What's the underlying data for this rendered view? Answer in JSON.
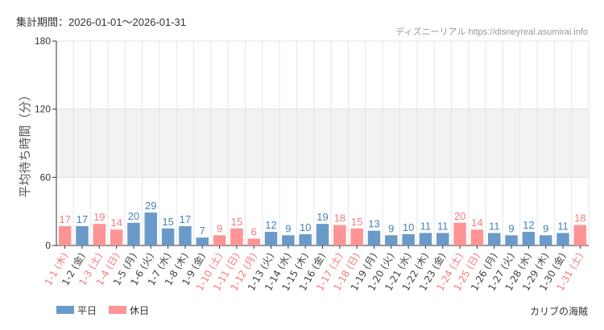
{
  "header": {
    "period": "集計期間：2026-01-01〜2026-01-31",
    "credit": "ディズニーリアル https://disneyreal.asumirai.info"
  },
  "footer": {
    "area": "カリブの海賊"
  },
  "chart_data": {
    "type": "bar",
    "ylabel": "平均待ち時間（分）",
    "ylim": [
      0,
      180
    ],
    "yticks": [
      0,
      60,
      120,
      180
    ],
    "grid": true,
    "shaded_band": [
      60,
      120
    ],
    "legend_position": "bottom-left",
    "colors": {
      "weekday": "#6a9ac8",
      "holiday": "#ff9396",
      "weekday_label": "#4a7fb8",
      "holiday_label": "#f47c7f"
    },
    "series": [
      {
        "name": "平日",
        "key": "weekday"
      },
      {
        "name": "休日",
        "key": "holiday"
      }
    ],
    "categories": [
      "1-1 (木)",
      "1-2 (金)",
      "1-3 (土)",
      "1-4 (日)",
      "1-5 (月)",
      "1-6 (火)",
      "1-7 (水)",
      "1-8 (木)",
      "1-9 (金)",
      "1-10 (土)",
      "1-11 (日)",
      "1-12 (月)",
      "1-13 (火)",
      "1-14 (水)",
      "1-15 (木)",
      "1-16 (金)",
      "1-17 (土)",
      "1-18 (日)",
      "1-19 (月)",
      "1-20 (火)",
      "1-21 (水)",
      "1-22 (木)",
      "1-23 (金)",
      "1-24 (土)",
      "1-25 (日)",
      "1-26 (月)",
      "1-27 (火)",
      "1-28 (水)",
      "1-29 (木)",
      "1-30 (金)",
      "1-31 (土)"
    ],
    "values": [
      17,
      17,
      19,
      14,
      20,
      29,
      15,
      17,
      7,
      9,
      15,
      6,
      12,
      9,
      10,
      19,
      18,
      15,
      13,
      9,
      10,
      11,
      11,
      20,
      14,
      11,
      9,
      12,
      9,
      11,
      18
    ],
    "day_type": [
      "holiday",
      "weekday",
      "holiday",
      "holiday",
      "weekday",
      "weekday",
      "weekday",
      "weekday",
      "weekday",
      "holiday",
      "holiday",
      "holiday",
      "weekday",
      "weekday",
      "weekday",
      "weekday",
      "holiday",
      "holiday",
      "weekday",
      "weekday",
      "weekday",
      "weekday",
      "weekday",
      "holiday",
      "holiday",
      "weekday",
      "weekday",
      "weekday",
      "weekday",
      "weekday",
      "holiday"
    ]
  }
}
